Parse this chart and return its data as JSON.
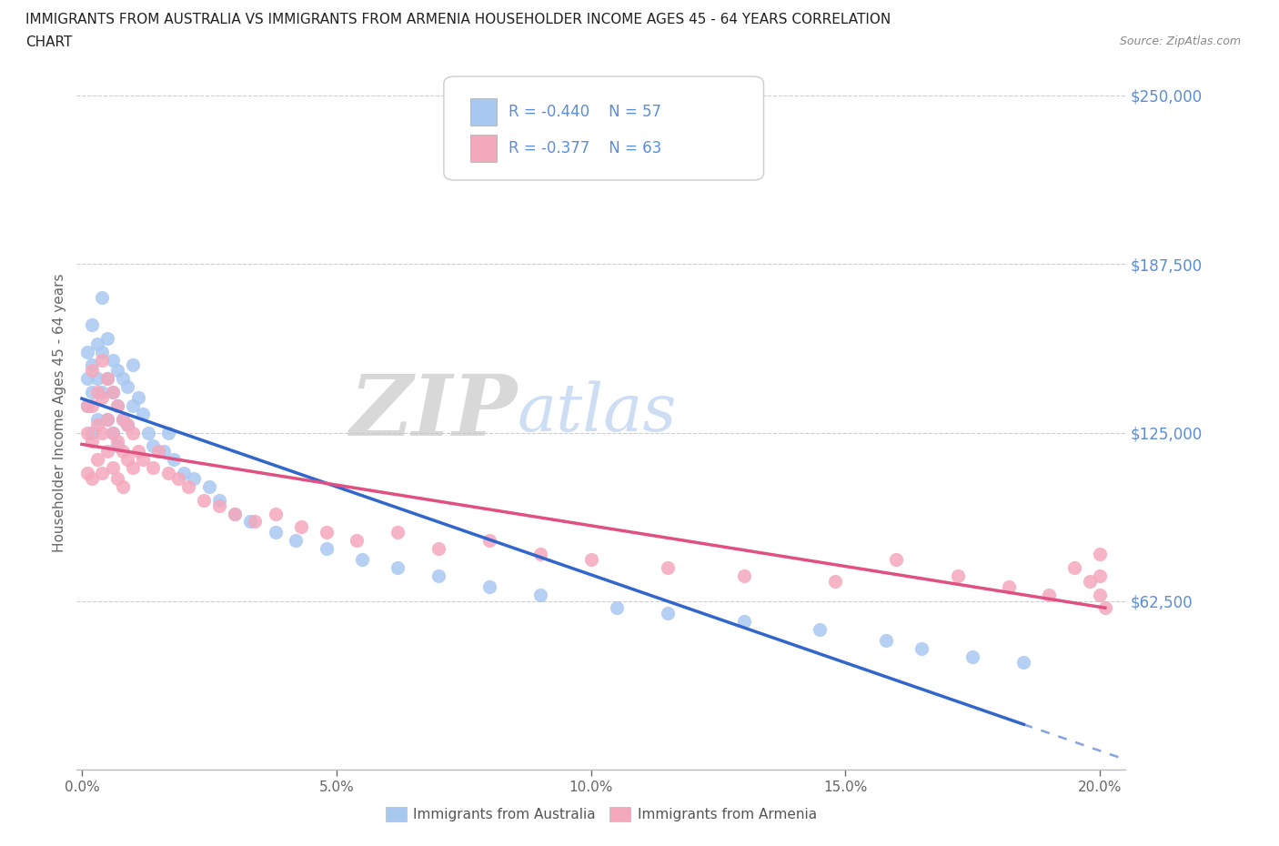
{
  "title_line1": "IMMIGRANTS FROM AUSTRALIA VS IMMIGRANTS FROM ARMENIA HOUSEHOLDER INCOME AGES 45 - 64 YEARS CORRELATION",
  "title_line2": "CHART",
  "source": "Source: ZipAtlas.com",
  "ylabel": "Householder Income Ages 45 - 64 years",
  "xlim": [
    -0.001,
    0.205
  ],
  "ylim": [
    0,
    265000
  ],
  "yticks": [
    0,
    62500,
    125000,
    187500,
    250000
  ],
  "ytick_labels": [
    "",
    "$62,500",
    "$125,000",
    "$187,500",
    "$250,000"
  ],
  "xticks": [
    0.0,
    0.05,
    0.1,
    0.15,
    0.2
  ],
  "xtick_labels": [
    "0.0%",
    "5.0%",
    "10.0%",
    "15.0%",
    "20.0%"
  ],
  "australia_color": "#A8C8F0",
  "armenia_color": "#F4A8BC",
  "australia_line_color": "#3366CC",
  "armenia_line_color": "#E05080",
  "australia_R": -0.44,
  "australia_N": 57,
  "armenia_R": -0.377,
  "armenia_N": 63,
  "legend_label_australia": "Immigrants from Australia",
  "legend_label_armenia": "Immigrants from Armenia",
  "background_color": "#FFFFFF",
  "grid_color": "#CCCCCC",
  "axis_color": "#5B8DD9",
  "text_color": "#333333",
  "australia_x": [
    0.001,
    0.001,
    0.001,
    0.002,
    0.002,
    0.002,
    0.002,
    0.003,
    0.003,
    0.003,
    0.004,
    0.004,
    0.004,
    0.005,
    0.005,
    0.005,
    0.006,
    0.006,
    0.006,
    0.007,
    0.007,
    0.007,
    0.008,
    0.008,
    0.009,
    0.009,
    0.01,
    0.01,
    0.011,
    0.012,
    0.013,
    0.014,
    0.016,
    0.017,
    0.018,
    0.02,
    0.022,
    0.025,
    0.027,
    0.03,
    0.033,
    0.038,
    0.042,
    0.048,
    0.055,
    0.062,
    0.07,
    0.08,
    0.09,
    0.105,
    0.115,
    0.13,
    0.145,
    0.158,
    0.165,
    0.175,
    0.185
  ],
  "australia_y": [
    155000,
    145000,
    135000,
    165000,
    150000,
    140000,
    125000,
    158000,
    145000,
    130000,
    175000,
    155000,
    140000,
    160000,
    145000,
    130000,
    152000,
    140000,
    125000,
    148000,
    135000,
    120000,
    145000,
    130000,
    142000,
    128000,
    150000,
    135000,
    138000,
    132000,
    125000,
    120000,
    118000,
    125000,
    115000,
    110000,
    108000,
    105000,
    100000,
    95000,
    92000,
    88000,
    85000,
    82000,
    78000,
    75000,
    72000,
    68000,
    65000,
    60000,
    58000,
    55000,
    52000,
    48000,
    45000,
    42000,
    40000
  ],
  "armenia_x": [
    0.001,
    0.001,
    0.001,
    0.002,
    0.002,
    0.002,
    0.002,
    0.003,
    0.003,
    0.003,
    0.004,
    0.004,
    0.004,
    0.004,
    0.005,
    0.005,
    0.005,
    0.006,
    0.006,
    0.006,
    0.007,
    0.007,
    0.007,
    0.008,
    0.008,
    0.008,
    0.009,
    0.009,
    0.01,
    0.01,
    0.011,
    0.012,
    0.014,
    0.015,
    0.017,
    0.019,
    0.021,
    0.024,
    0.027,
    0.03,
    0.034,
    0.038,
    0.043,
    0.048,
    0.054,
    0.062,
    0.07,
    0.08,
    0.09,
    0.1,
    0.115,
    0.13,
    0.148,
    0.16,
    0.172,
    0.182,
    0.19,
    0.195,
    0.198,
    0.2,
    0.2,
    0.2,
    0.201
  ],
  "armenia_y": [
    135000,
    125000,
    110000,
    148000,
    135000,
    122000,
    108000,
    140000,
    128000,
    115000,
    152000,
    138000,
    125000,
    110000,
    145000,
    130000,
    118000,
    140000,
    125000,
    112000,
    135000,
    122000,
    108000,
    130000,
    118000,
    105000,
    128000,
    115000,
    125000,
    112000,
    118000,
    115000,
    112000,
    118000,
    110000,
    108000,
    105000,
    100000,
    98000,
    95000,
    92000,
    95000,
    90000,
    88000,
    85000,
    88000,
    82000,
    85000,
    80000,
    78000,
    75000,
    72000,
    70000,
    78000,
    72000,
    68000,
    65000,
    75000,
    70000,
    80000,
    72000,
    65000,
    60000
  ]
}
